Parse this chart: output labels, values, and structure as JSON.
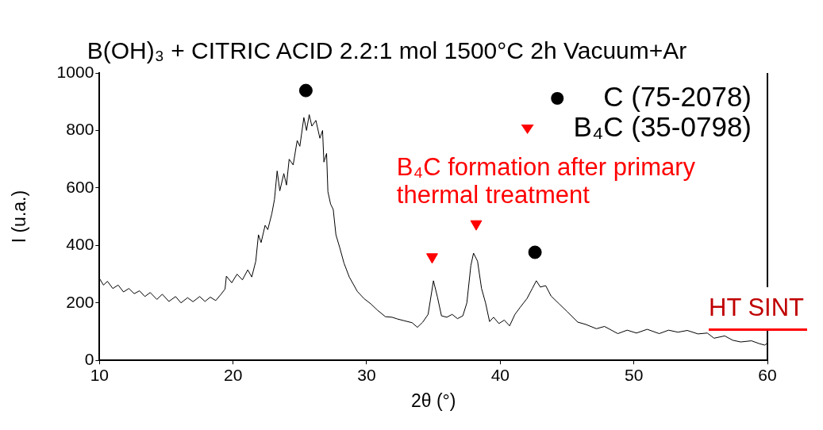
{
  "chart_data": {
    "type": "line",
    "title": "B(OH)₃ + CITRIC ACID 2.2:1 mol 1500°C 2h Vacuum+Ar",
    "xlabel": "2θ (°)",
    "ylabel": "I (u.a.)",
    "xlim": [
      10,
      60
    ],
    "xticks": [
      10,
      20,
      30,
      40,
      50,
      60
    ],
    "ylim": [
      0,
      1000
    ],
    "yticks": [
      0,
      200,
      400,
      600,
      800,
      1000
    ],
    "grid": false,
    "legend": "top right",
    "annotations": [
      "B₄C formation after primary thermal treatment",
      "HT SINT"
    ],
    "series": [
      {
        "type": "line",
        "color": "#000000",
        "marker": "none",
        "x": [
          10,
          10.3,
          10.6,
          11,
          11.4,
          11.8,
          12.2,
          12.6,
          13,
          13.4,
          13.8,
          14.3,
          14.7,
          15.2,
          15.7,
          16.1,
          16.6,
          17,
          17.5,
          17.9,
          18.3,
          18.7,
          19.1,
          19.4,
          19.5,
          19.9,
          20.3,
          20.7,
          21.1,
          21.4,
          21.7,
          21.9,
          22.1,
          22.4,
          22.6,
          22.9,
          23.1,
          23.3,
          23.5,
          23.8,
          24,
          24.2,
          24.5,
          24.8,
          25,
          25.3,
          25.5,
          25.7,
          25.9,
          26.2,
          26.5,
          26.7,
          26.8,
          27,
          27.1,
          27.3,
          27.5,
          27.7,
          28,
          28.3,
          28.7,
          29.3,
          29.8,
          30.3,
          30.8,
          31.4,
          31.9,
          32.3,
          32.8,
          33.4,
          33.8,
          34.2,
          34.6,
          35,
          35.3,
          35.6,
          36,
          36.4,
          36.8,
          37.2,
          37.5,
          37.8,
          38,
          38.3,
          38.6,
          38.9,
          39.2,
          39.5,
          39.9,
          40.3,
          40.7,
          41.1,
          41.5,
          42,
          42.4,
          42.7,
          43,
          43.4,
          43.8,
          44.4,
          45,
          45.8,
          46.4,
          47.2,
          47.8,
          48.8,
          49.5,
          50.2,
          51,
          51.9,
          52.6,
          53.3,
          54,
          54.8,
          55.5,
          56,
          56.8,
          57.4,
          58,
          58.8,
          59.4,
          59.8,
          60
        ],
        "values": [
          285,
          262,
          275,
          250,
          262,
          238,
          250,
          232,
          242,
          222,
          236,
          212,
          230,
          205,
          222,
          200,
          218,
          204,
          222,
          205,
          220,
          208,
          230,
          248,
          293,
          270,
          300,
          280,
          315,
          290,
          345,
          437,
          410,
          470,
          455,
          510,
          560,
          659,
          590,
          650,
          610,
          700,
          680,
          765,
          745,
          845,
          800,
          855,
          815,
          835,
          773,
          800,
          690,
          720,
          587,
          544,
          525,
          437,
          390,
          339,
          290,
          240,
          215,
          197,
          175,
          152,
          150,
          144,
          138,
          131,
          115,
          133,
          160,
          277,
          220,
          155,
          150,
          160,
          145,
          155,
          200,
          330,
          373,
          345,
          250,
          200,
          135,
          150,
          128,
          140,
          120,
          160,
          185,
          215,
          250,
          277,
          255,
          260,
          224,
          197,
          170,
          133,
          125,
          110,
          118,
          93,
          105,
          95,
          108,
          93,
          105,
          98,
          104,
          92,
          95,
          77,
          85,
          70,
          64,
          68,
          58,
          53,
          60
        ]
      },
      {
        "type": "scatter",
        "name": "C (75-2078)",
        "color": "#000000",
        "marker": "circle",
        "x": [
          25.45,
          42.6
        ],
        "values": [
          939,
          376
        ]
      },
      {
        "type": "scatter",
        "name": "B₄C (35-0798)",
        "color": "#ff0000",
        "marker": "triangle",
        "x": [
          34.9,
          38.2
        ],
        "values": [
          360,
          475
        ]
      }
    ]
  }
}
